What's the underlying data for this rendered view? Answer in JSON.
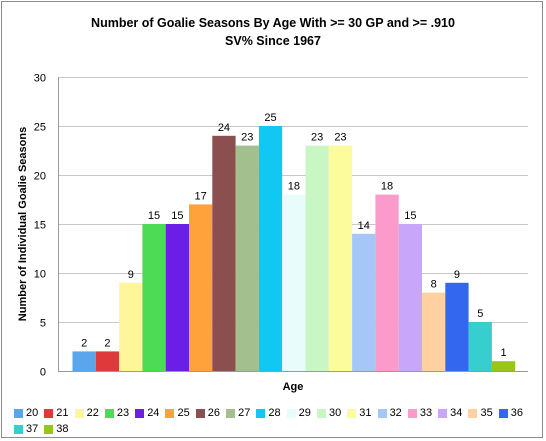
{
  "chart_data": {
    "type": "bar",
    "title": [
      "Number of Goalie Seasons By Age With >= 30 GP and >= .910",
      "SV% Since 1967"
    ],
    "xlabel": "Age",
    "ylabel": "Number of Individual Goalie Seasons",
    "ylim": [
      0,
      30
    ],
    "yticks": [
      0,
      5,
      10,
      15,
      20,
      25,
      30
    ],
    "grid": true,
    "legend_position": "bottom",
    "categories": [
      "20",
      "21",
      "22",
      "23",
      "24",
      "25",
      "26",
      "27",
      "28",
      "29",
      "30",
      "31",
      "32",
      "33",
      "34",
      "35",
      "36",
      "37",
      "38"
    ],
    "values": [
      2,
      2,
      9,
      15,
      15,
      17,
      24,
      23,
      25,
      18,
      23,
      23,
      14,
      18,
      15,
      8,
      9,
      5,
      1
    ],
    "colors": [
      "#5ba6ea",
      "#e0393c",
      "#fff59a",
      "#4ddb56",
      "#6a1ee6",
      "#ffa23c",
      "#8c4f50",
      "#a3bf8d",
      "#11c8f2",
      "#e9fcfc",
      "#c9f7c3",
      "#fcfc9d",
      "#a5c7f7",
      "#fb9bcb",
      "#c8a6f9",
      "#ffd0a0",
      "#3367f0",
      "#36cece",
      "#99c51b"
    ]
  }
}
